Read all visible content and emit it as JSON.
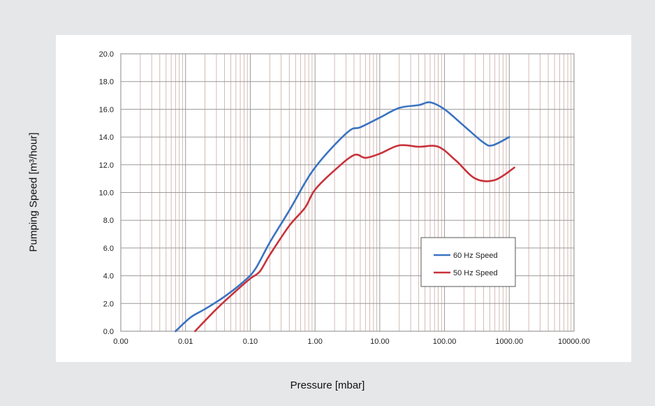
{
  "chart_data": {
    "type": "line",
    "xlabel": "Pressure [mbar]",
    "ylabel": "Pumping Speed [m³/hour]",
    "x_scale": "log",
    "xlim": [
      0.001,
      10000
    ],
    "ylim": [
      0,
      20
    ],
    "x_tick_values": [
      0.001,
      0.01,
      0.1,
      1,
      10,
      100,
      1000,
      10000
    ],
    "x_tick_labels": [
      "0.00",
      "0.01",
      "0.10",
      "1.00",
      "10.00",
      "100.00",
      "1000.00",
      "10000.00"
    ],
    "y_tick_values": [
      0,
      2,
      4,
      6,
      8,
      10,
      12,
      14,
      16,
      18,
      20
    ],
    "y_tick_labels": [
      "0.0",
      "2.0",
      "4.0",
      "6.0",
      "8.0",
      "10.0",
      "12.0",
      "14.0",
      "16.0",
      "18.0",
      "20.0"
    ],
    "grid": true,
    "legend_position": "lower-right",
    "series": [
      {
        "name": "60 Hz Speed",
        "color": "#3a73c1",
        "points": [
          [
            0.007,
            0.0
          ],
          [
            0.012,
            1.0
          ],
          [
            0.02,
            1.6
          ],
          [
            0.04,
            2.5
          ],
          [
            0.08,
            3.6
          ],
          [
            0.12,
            4.5
          ],
          [
            0.2,
            6.4
          ],
          [
            0.4,
            8.7
          ],
          [
            0.7,
            10.7
          ],
          [
            1.0,
            11.8
          ],
          [
            1.8,
            13.2
          ],
          [
            3.5,
            14.5
          ],
          [
            5,
            14.7
          ],
          [
            10,
            15.4
          ],
          [
            20,
            16.1
          ],
          [
            40,
            16.3
          ],
          [
            60,
            16.5
          ],
          [
            100,
            16.0
          ],
          [
            200,
            14.8
          ],
          [
            400,
            13.6
          ],
          [
            550,
            13.4
          ],
          [
            1000,
            14.0
          ]
        ]
      },
      {
        "name": "50 Hz Speed",
        "color": "#c8323a",
        "points": [
          [
            0.014,
            0.0
          ],
          [
            0.03,
            1.6
          ],
          [
            0.06,
            2.9
          ],
          [
            0.1,
            3.8
          ],
          [
            0.14,
            4.3
          ],
          [
            0.2,
            5.5
          ],
          [
            0.4,
            7.6
          ],
          [
            0.7,
            8.9
          ],
          [
            1.0,
            10.2
          ],
          [
            2.0,
            11.6
          ],
          [
            4,
            12.7
          ],
          [
            6,
            12.5
          ],
          [
            10,
            12.8
          ],
          [
            20,
            13.4
          ],
          [
            40,
            13.3
          ],
          [
            80,
            13.3
          ],
          [
            150,
            12.3
          ],
          [
            300,
            11.0
          ],
          [
            600,
            10.9
          ],
          [
            1200,
            11.8
          ]
        ]
      }
    ]
  }
}
